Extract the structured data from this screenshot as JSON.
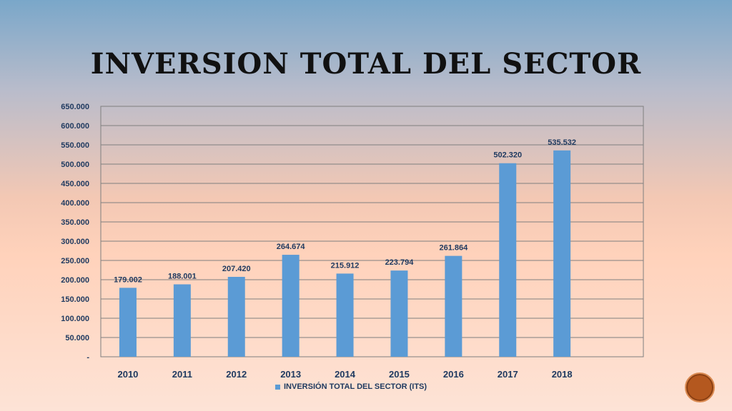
{
  "slide": {
    "title": "INVERSION TOTAL DEL SECTOR"
  },
  "colors": {
    "bar": "#5b9bd5",
    "text": "#1f3a60",
    "grid": "#7f7f7f",
    "badge": "#b4581f"
  },
  "chart_data": {
    "type": "bar",
    "categories": [
      "2010",
      "2011",
      "2012",
      "2013",
      "2014",
      "2015",
      "2016",
      "2017",
      "2018"
    ],
    "series": [
      {
        "name": "INVERSIÓN TOTAL DEL SECTOR (ITS)",
        "values": [
          179002,
          188001,
          207420,
          264674,
          215912,
          223794,
          261864,
          502320,
          535532
        ]
      }
    ],
    "data_labels": [
      "179.002",
      "188.001",
      "207.420",
      "264.674",
      "215.912",
      "223.794",
      "261.864",
      "502.320",
      "535.532"
    ],
    "y_ticks": [
      {
        "value": 0,
        "label": "-"
      },
      {
        "value": 50000,
        "label": "50.000"
      },
      {
        "value": 100000,
        "label": "100.000"
      },
      {
        "value": 150000,
        "label": "150.000"
      },
      {
        "value": 200000,
        "label": "200.000"
      },
      {
        "value": 250000,
        "label": "250.000"
      },
      {
        "value": 300000,
        "label": "300.000"
      },
      {
        "value": 350000,
        "label": "350.000"
      },
      {
        "value": 400000,
        "label": "400.000"
      },
      {
        "value": 450000,
        "label": "450.000"
      },
      {
        "value": 500000,
        "label": "500.000"
      },
      {
        "value": 550000,
        "label": "550.000"
      },
      {
        "value": 600000,
        "label": "600.000"
      },
      {
        "value": 650000,
        "label": "650.000"
      }
    ],
    "ylim": [
      0,
      650000
    ],
    "category_slots": 10,
    "grid": true,
    "legend_position": "bottom"
  }
}
